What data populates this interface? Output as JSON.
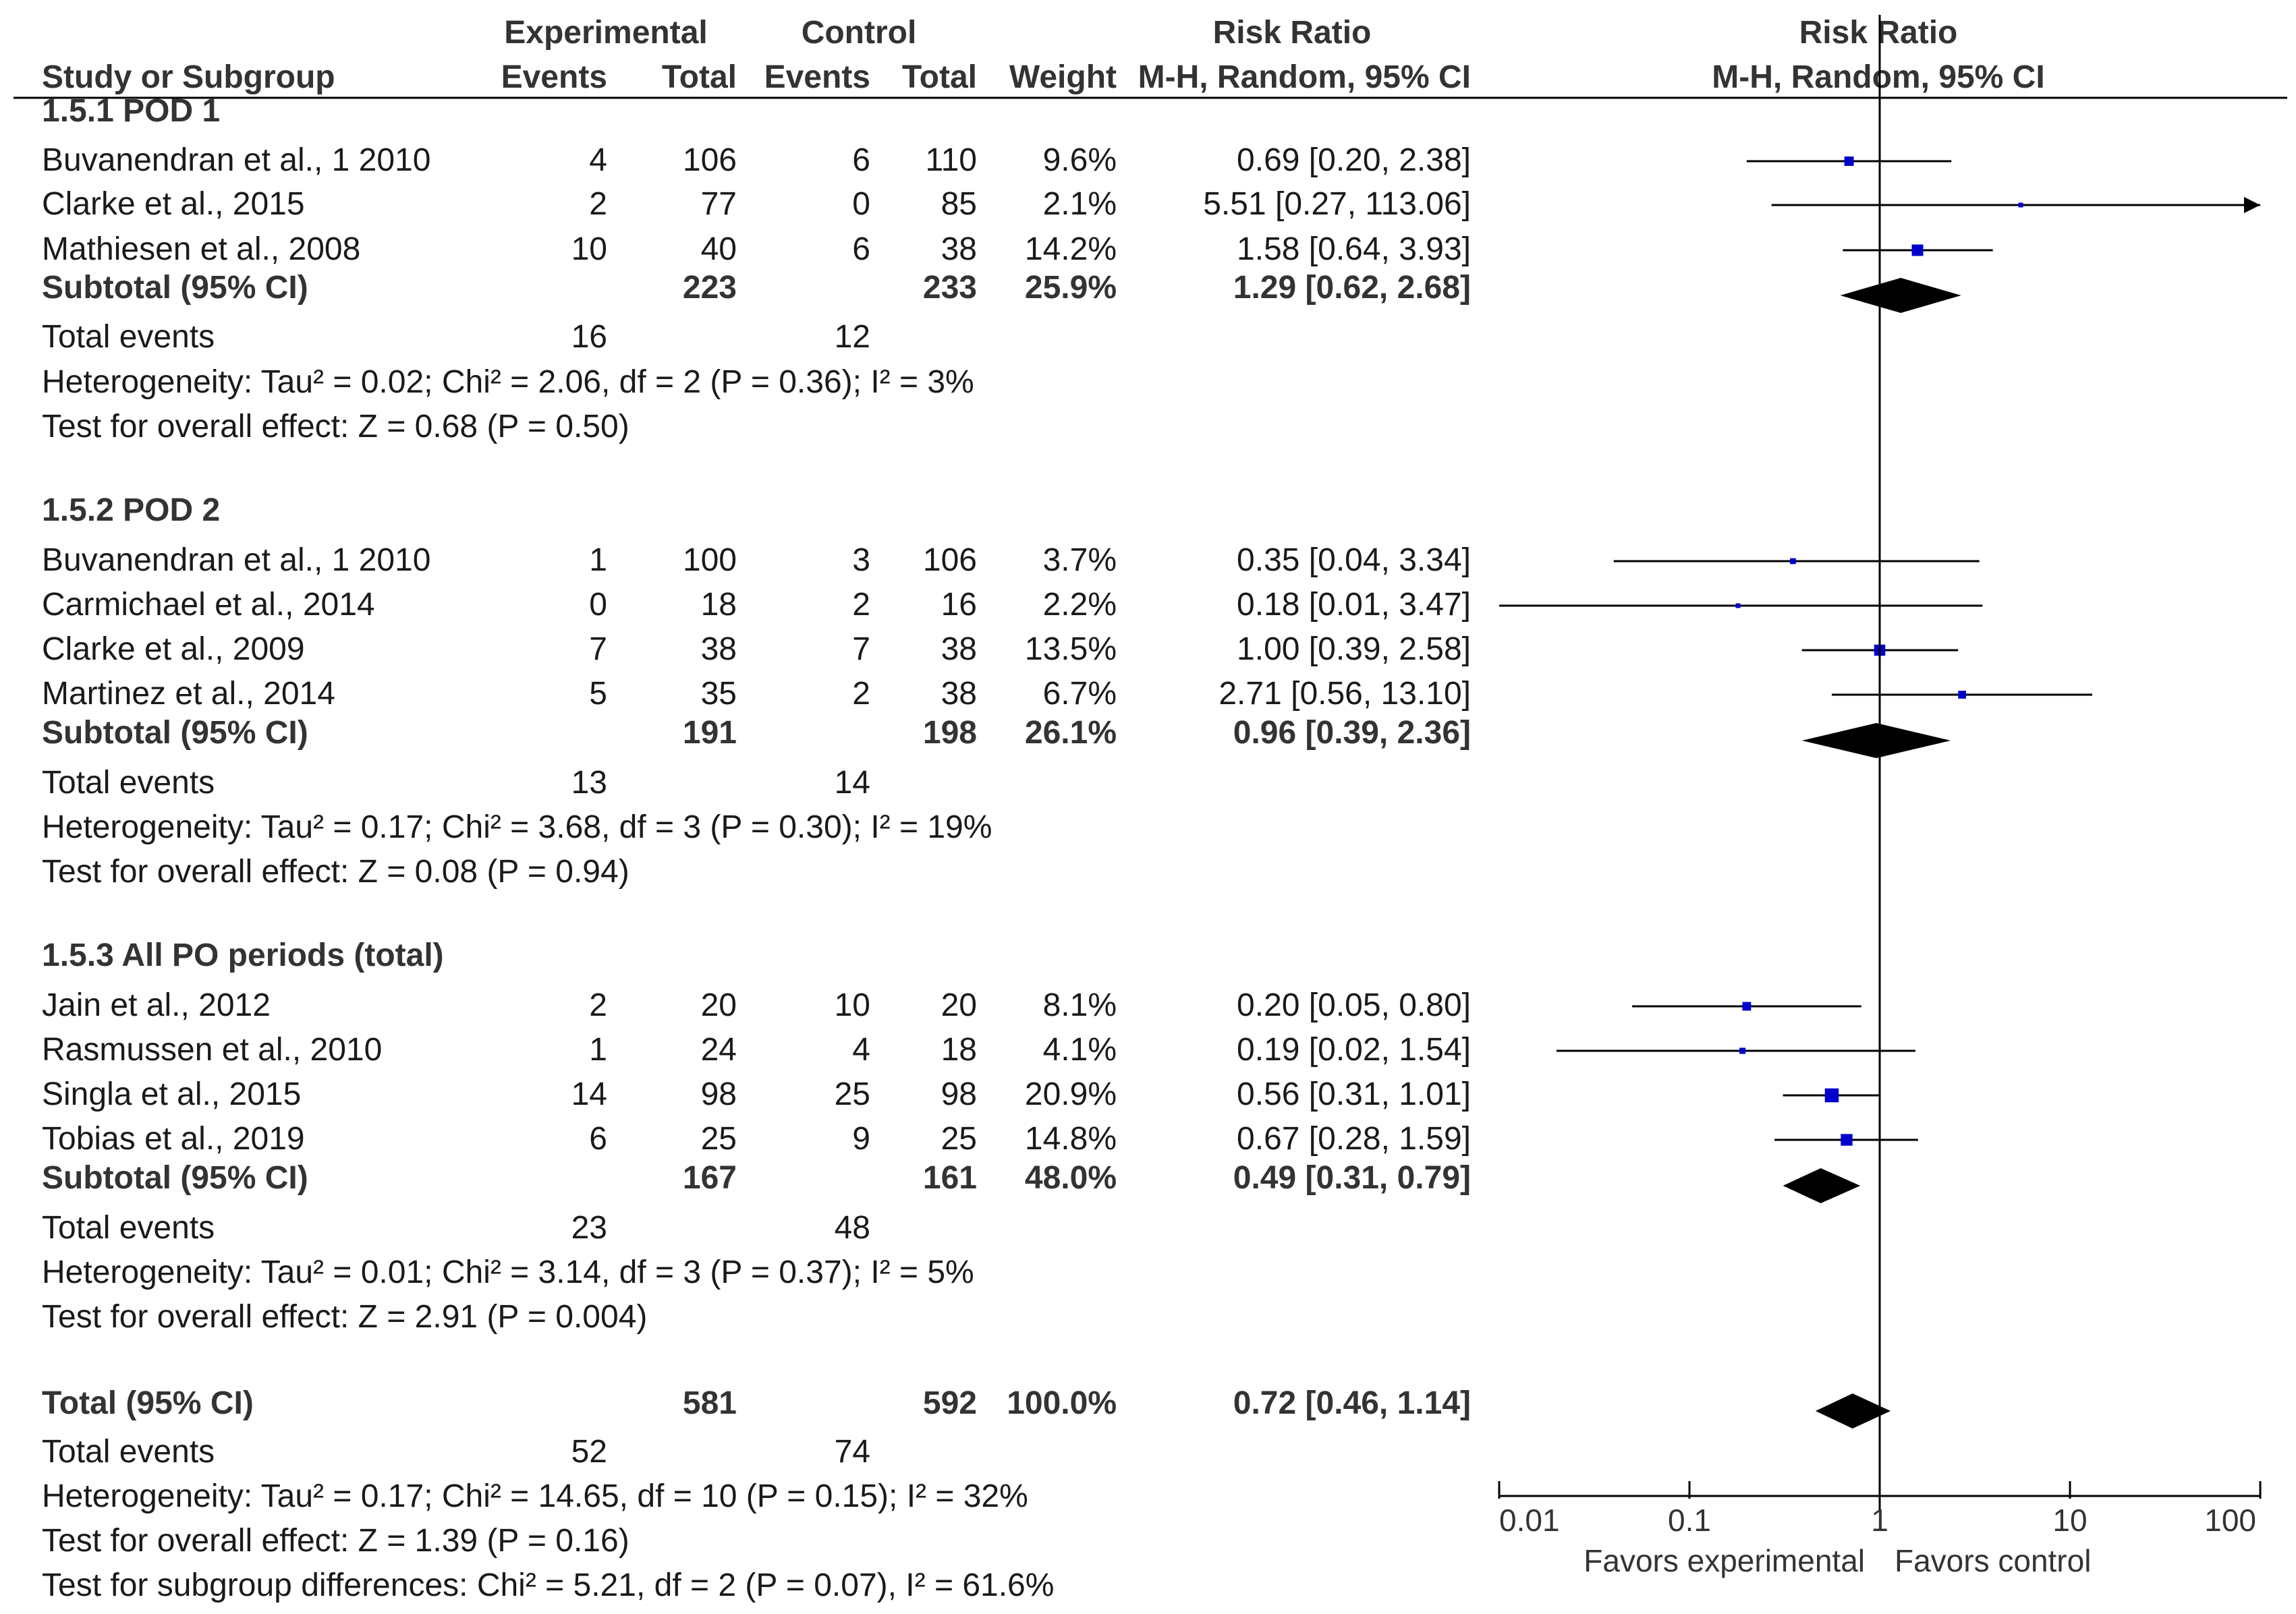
{
  "chart_data": {
    "type": "forest",
    "header": {
      "study": "Study or Subgroup",
      "experimental": "Experimental",
      "control": "Control",
      "events": "Events",
      "total": "Total",
      "weight": "Weight",
      "rr_title": "Risk Ratio",
      "rr_method": "M-H, Random, 95% CI",
      "plot_title": "Risk Ratio",
      "plot_method": "M-H, Random, 95% CI"
    },
    "subgroups": [
      {
        "title": "1.5.1 POD 1",
        "studies": [
          {
            "name": "Buvanendran et al., 1 2010",
            "e_events": "4",
            "e_total": "106",
            "c_events": "6",
            "c_total": "110",
            "weight": "9.6%",
            "ci_text": "0.69 [0.20, 2.38]",
            "rr": 0.69,
            "lo": 0.2,
            "hi": 2.38,
            "w": 9.6
          },
          {
            "name": "Clarke et al., 2015",
            "e_events": "2",
            "e_total": "77",
            "c_events": "0",
            "c_total": "85",
            "weight": "2.1%",
            "ci_text": "5.51 [0.27, 113.06]",
            "rr": 5.51,
            "lo": 0.27,
            "hi": 113.06,
            "w": 2.1
          },
          {
            "name": "Mathiesen et al., 2008",
            "e_events": "10",
            "e_total": "40",
            "c_events": "6",
            "c_total": "38",
            "weight": "14.2%",
            "ci_text": "1.58 [0.64, 3.93]",
            "rr": 1.58,
            "lo": 0.64,
            "hi": 3.93,
            "w": 14.2
          }
        ],
        "subtotal": {
          "label": "Subtotal (95% CI)",
          "e_total": "223",
          "c_total": "233",
          "weight": "25.9%",
          "ci_text": "1.29 [0.62, 2.68]",
          "rr": 1.29,
          "lo": 0.62,
          "hi": 2.68
        },
        "total_events": {
          "label": "Total events",
          "e": "16",
          "c": "12"
        },
        "heterogeneity": "Heterogeneity: Tau² = 0.02; Chi² = 2.06, df = 2 (P = 0.36); I² = 3%",
        "overall": "Test for overall effect: Z = 0.68 (P = 0.50)"
      },
      {
        "title": "1.5.2 POD 2",
        "studies": [
          {
            "name": "Buvanendran et al., 1 2010",
            "e_events": "1",
            "e_total": "100",
            "c_events": "3",
            "c_total": "106",
            "weight": "3.7%",
            "ci_text": "0.35 [0.04, 3.34]",
            "rr": 0.35,
            "lo": 0.04,
            "hi": 3.34,
            "w": 3.7
          },
          {
            "name": "Carmichael et al., 2014",
            "e_events": "0",
            "e_total": "18",
            "c_events": "2",
            "c_total": "16",
            "weight": "2.2%",
            "ci_text": "0.18 [0.01, 3.47]",
            "rr": 0.18,
            "lo": 0.01,
            "hi": 3.47,
            "w": 2.2
          },
          {
            "name": "Clarke et al., 2009",
            "e_events": "7",
            "e_total": "38",
            "c_events": "7",
            "c_total": "38",
            "weight": "13.5%",
            "ci_text": "1.00 [0.39, 2.58]",
            "rr": 1.0,
            "lo": 0.39,
            "hi": 2.58,
            "w": 13.5
          },
          {
            "name": "Martinez et al., 2014",
            "e_events": "5",
            "e_total": "35",
            "c_events": "2",
            "c_total": "38",
            "weight": "6.7%",
            "ci_text": "2.71 [0.56, 13.10]",
            "rr": 2.71,
            "lo": 0.56,
            "hi": 13.1,
            "w": 6.7
          }
        ],
        "subtotal": {
          "label": "Subtotal (95% CI)",
          "e_total": "191",
          "c_total": "198",
          "weight": "26.1%",
          "ci_text": "0.96 [0.39, 2.36]",
          "rr": 0.96,
          "lo": 0.39,
          "hi": 2.36
        },
        "total_events": {
          "label": "Total events",
          "e": "13",
          "c": "14"
        },
        "heterogeneity": "Heterogeneity: Tau² = 0.17; Chi² = 3.68, df = 3 (P = 0.30); I² = 19%",
        "overall": "Test for overall effect: Z = 0.08 (P = 0.94)"
      },
      {
        "title": "1.5.3 All PO periods (total)",
        "studies": [
          {
            "name": "Jain et al., 2012",
            "e_events": "2",
            "e_total": "20",
            "c_events": "10",
            "c_total": "20",
            "weight": "8.1%",
            "ci_text": "0.20 [0.05, 0.80]",
            "rr": 0.2,
            "lo": 0.05,
            "hi": 0.8,
            "w": 8.1
          },
          {
            "name": "Rasmussen et al., 2010",
            "e_events": "1",
            "e_total": "24",
            "c_events": "4",
            "c_total": "18",
            "weight": "4.1%",
            "ci_text": "0.19 [0.02, 1.54]",
            "rr": 0.19,
            "lo": 0.02,
            "hi": 1.54,
            "w": 4.1
          },
          {
            "name": "Singla et al., 2015",
            "e_events": "14",
            "e_total": "98",
            "c_events": "25",
            "c_total": "98",
            "weight": "20.9%",
            "ci_text": "0.56 [0.31, 1.01]",
            "rr": 0.56,
            "lo": 0.31,
            "hi": 1.01,
            "w": 20.9
          },
          {
            "name": "Tobias et al., 2019",
            "e_events": "6",
            "e_total": "25",
            "c_events": "9",
            "c_total": "25",
            "weight": "14.8%",
            "ci_text": "0.67 [0.28, 1.59]",
            "rr": 0.67,
            "lo": 0.28,
            "hi": 1.59,
            "w": 14.8
          }
        ],
        "subtotal": {
          "label": "Subtotal (95% CI)",
          "e_total": "167",
          "c_total": "161",
          "weight": "48.0%",
          "ci_text": "0.49 [0.31, 0.79]",
          "rr": 0.49,
          "lo": 0.31,
          "hi": 0.79
        },
        "total_events": {
          "label": "Total events",
          "e": "23",
          "c": "48"
        },
        "heterogeneity": "Heterogeneity: Tau² = 0.01; Chi² = 3.14, df = 3 (P = 0.37); I² = 5%",
        "overall": "Test for overall effect: Z = 2.91 (P = 0.004)"
      }
    ],
    "total": {
      "label": "Total (95% CI)",
      "e_total": "581",
      "c_total": "592",
      "weight": "100.0%",
      "ci_text": "0.72 [0.46, 1.14]",
      "rr": 0.72,
      "lo": 0.46,
      "hi": 1.14,
      "total_events": {
        "label": "Total events",
        "e": "52",
        "c": "74"
      },
      "heterogeneity": "Heterogeneity: Tau² = 0.17; Chi² = 14.65, df = 10 (P = 0.15); I² = 32%",
      "overall": "Test for overall effect: Z = 1.39 (P = 0.16)",
      "subgroup_diff": "Test for subgroup differences: Chi² = 5.21, df = 2 (P = 0.07), I² = 61.6%"
    },
    "axis": {
      "scale": "log",
      "range": [
        0.01,
        100
      ],
      "ticks": [
        0.01,
        0.1,
        1,
        10,
        100
      ],
      "tick_labels": [
        "0.01",
        "0.1",
        "1",
        "10",
        "100"
      ],
      "left_label": "Favors experimental",
      "right_label": "Favors control"
    },
    "colors": {
      "marker": "#0000cc",
      "line": "#000000",
      "diamond": "#000000",
      "text": "#1a1a1a"
    }
  }
}
